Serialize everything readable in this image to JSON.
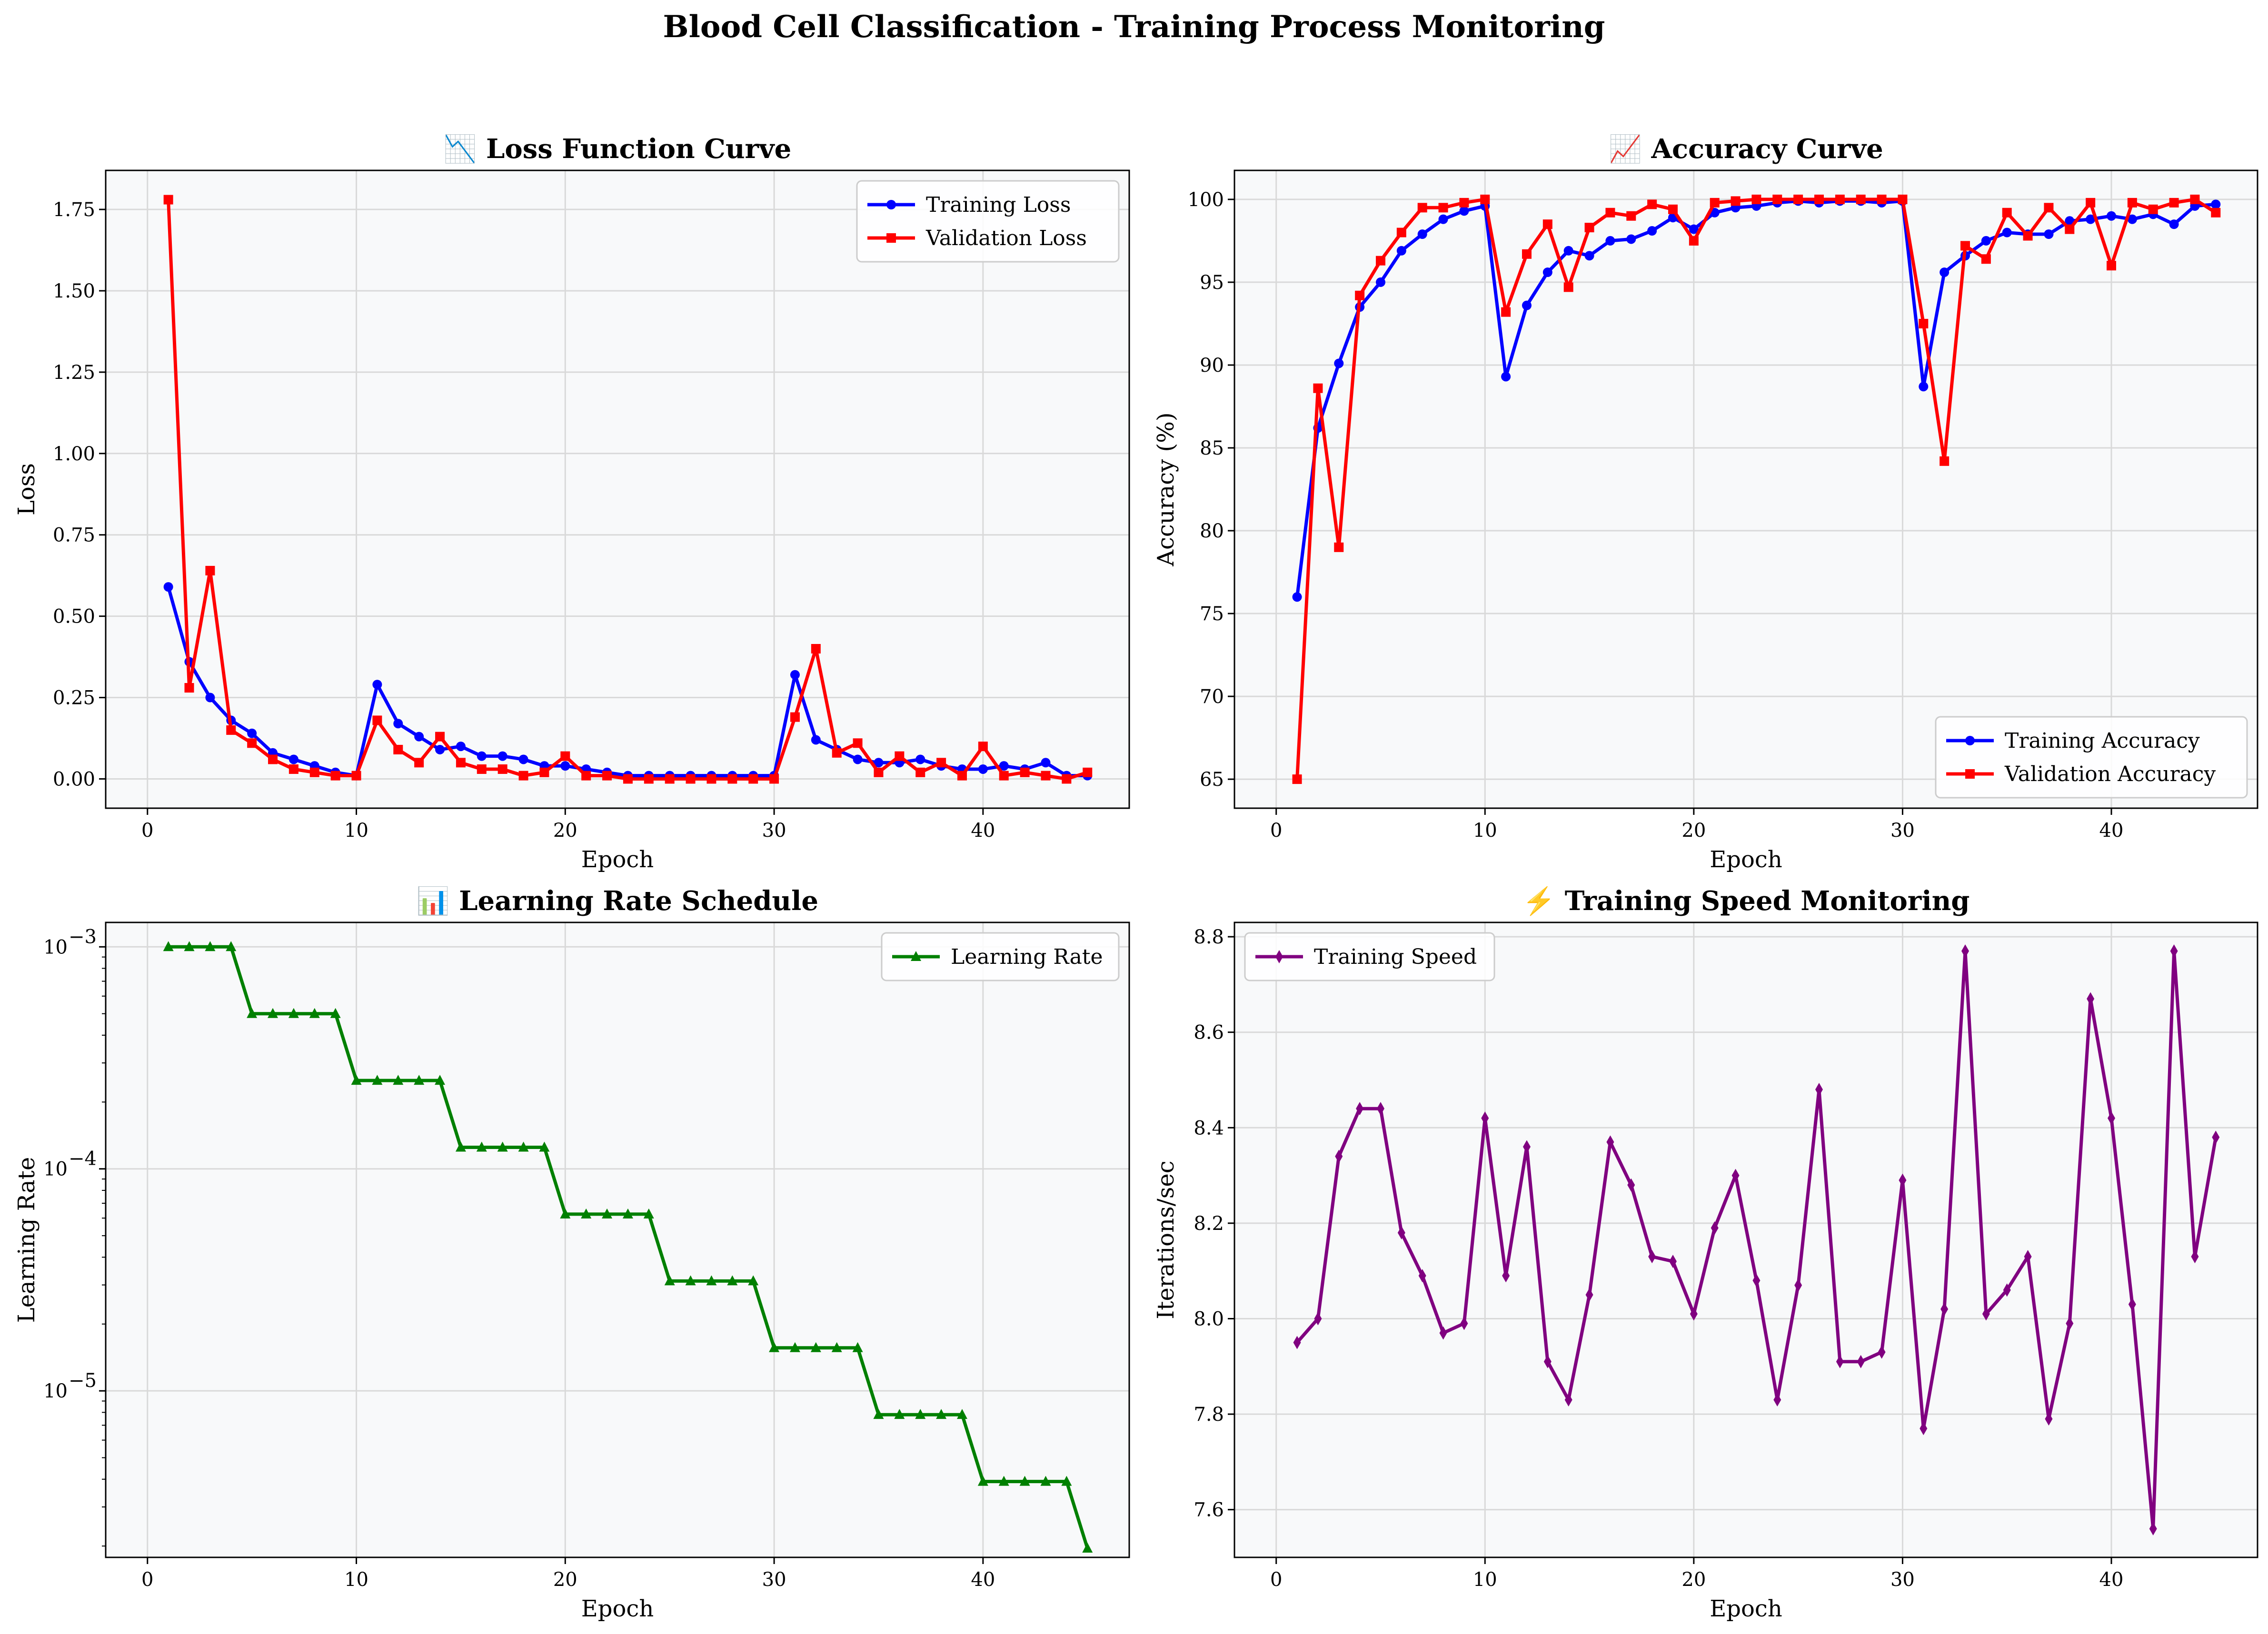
{
  "figure_title": "Blood Cell Classification - Training Process Monitoring",
  "chart_data": [
    {
      "type": "line",
      "title": "📉 Loss Function Curve",
      "xlabel": "Epoch",
      "ylabel": "Loss",
      "xlim": [
        -2,
        47
      ],
      "ylim": [
        -0.09,
        1.87
      ],
      "xticks": [
        0,
        10,
        20,
        30,
        40
      ],
      "yticks": [
        0.0,
        0.25,
        0.5,
        0.75,
        1.0,
        1.25,
        1.5,
        1.75
      ],
      "ytick_labels": [
        "0.00",
        "0.25",
        "0.50",
        "0.75",
        "1.00",
        "1.25",
        "1.50",
        "1.75"
      ],
      "yscale": "linear",
      "grid": true,
      "legend_position": "top-right",
      "x": [
        1,
        2,
        3,
        4,
        5,
        6,
        7,
        8,
        9,
        10,
        11,
        12,
        13,
        14,
        15,
        16,
        17,
        18,
        19,
        20,
        21,
        22,
        23,
        24,
        25,
        26,
        27,
        28,
        29,
        30,
        31,
        32,
        33,
        34,
        35,
        36,
        37,
        38,
        39,
        40,
        41,
        42,
        43,
        44,
        45
      ],
      "series": [
        {
          "name": "Training Loss",
          "color": "#0000ff",
          "marker": "circle",
          "values": [
            0.59,
            0.36,
            0.25,
            0.18,
            0.14,
            0.08,
            0.06,
            0.04,
            0.02,
            0.01,
            0.29,
            0.17,
            0.13,
            0.09,
            0.1,
            0.07,
            0.07,
            0.06,
            0.04,
            0.04,
            0.03,
            0.02,
            0.01,
            0.01,
            0.01,
            0.01,
            0.01,
            0.01,
            0.01,
            0.01,
            0.32,
            0.12,
            0.09,
            0.06,
            0.05,
            0.05,
            0.06,
            0.04,
            0.03,
            0.03,
            0.04,
            0.03,
            0.05,
            0.01,
            0.01
          ]
        },
        {
          "name": "Validation Loss",
          "color": "#ff0000",
          "marker": "square",
          "values": [
            1.78,
            0.28,
            0.64,
            0.15,
            0.11,
            0.06,
            0.03,
            0.02,
            0.01,
            0.01,
            0.18,
            0.09,
            0.05,
            0.13,
            0.05,
            0.03,
            0.03,
            0.01,
            0.02,
            0.07,
            0.01,
            0.01,
            0.0,
            0.0,
            0.0,
            0.0,
            0.0,
            0.0,
            0.0,
            0.0,
            0.19,
            0.4,
            0.08,
            0.11,
            0.02,
            0.07,
            0.02,
            0.05,
            0.01,
            0.1,
            0.01,
            0.02,
            0.01,
            0.0,
            0.02
          ]
        }
      ]
    },
    {
      "type": "line",
      "title": "📈 Accuracy Curve",
      "xlabel": "Epoch",
      "ylabel": "Accuracy (%)",
      "xlim": [
        -2,
        47
      ],
      "ylim": [
        63.25,
        101.75
      ],
      "xticks": [
        0,
        10,
        20,
        30,
        40
      ],
      "yticks": [
        65,
        70,
        75,
        80,
        85,
        90,
        95,
        100
      ],
      "ytick_labels": [
        "65",
        "70",
        "75",
        "80",
        "85",
        "90",
        "95",
        "100"
      ],
      "yscale": "linear",
      "grid": true,
      "legend_position": "bottom-right",
      "x": [
        1,
        2,
        3,
        4,
        5,
        6,
        7,
        8,
        9,
        10,
        11,
        12,
        13,
        14,
        15,
        16,
        17,
        18,
        19,
        20,
        21,
        22,
        23,
        24,
        25,
        26,
        27,
        28,
        29,
        30,
        31,
        32,
        33,
        34,
        35,
        36,
        37,
        38,
        39,
        40,
        41,
        42,
        43,
        44,
        45
      ],
      "series": [
        {
          "name": "Training Accuracy",
          "color": "#0000ff",
          "marker": "circle",
          "values": [
            76.0,
            86.2,
            90.1,
            93.5,
            95.0,
            96.9,
            97.9,
            98.8,
            99.3,
            99.6,
            89.3,
            93.6,
            95.6,
            96.9,
            96.6,
            97.5,
            97.6,
            98.1,
            98.9,
            98.2,
            99.2,
            99.5,
            99.6,
            99.8,
            99.9,
            99.8,
            99.9,
            99.9,
            99.8,
            99.9,
            88.7,
            95.6,
            96.6,
            97.5,
            98.0,
            97.9,
            97.9,
            98.7,
            98.8,
            99.0,
            98.8,
            99.1,
            98.5,
            99.6,
            99.7
          ]
        },
        {
          "name": "Validation Accuracy",
          "color": "#ff0000",
          "marker": "square",
          "values": [
            65.0,
            88.6,
            79.0,
            94.2,
            96.3,
            98.0,
            99.5,
            99.5,
            99.8,
            100.0,
            93.2,
            96.7,
            98.5,
            94.7,
            98.3,
            99.2,
            99.0,
            99.7,
            99.4,
            97.5,
            99.8,
            99.9,
            100.0,
            100.0,
            100.0,
            100.0,
            100.0,
            100.0,
            100.0,
            100.0,
            92.5,
            84.2,
            97.2,
            96.4,
            99.2,
            97.8,
            99.5,
            98.2,
            99.8,
            96.0,
            99.8,
            99.4,
            99.8,
            100.0,
            99.2
          ]
        }
      ]
    },
    {
      "type": "line",
      "title": "📊 Learning Rate Schedule",
      "xlabel": "Epoch",
      "ylabel": "Learning Rate",
      "xlim": [
        -2,
        47
      ],
      "ylim_log10": [
        -5.75,
        -2.89
      ],
      "xticks": [
        0,
        10,
        20,
        30,
        40
      ],
      "yticks": [
        1e-05,
        0.0001,
        0.001
      ],
      "ytick_labels": [
        "10",
        "10",
        "10"
      ],
      "ytick_exponents": [
        "−5",
        "−4",
        "−3"
      ],
      "yscale": "log",
      "grid": true,
      "legend_position": "top-right",
      "x": [
        1,
        2,
        3,
        4,
        5,
        6,
        7,
        8,
        9,
        10,
        11,
        12,
        13,
        14,
        15,
        16,
        17,
        18,
        19,
        20,
        21,
        22,
        23,
        24,
        25,
        26,
        27,
        28,
        29,
        30,
        31,
        32,
        33,
        34,
        35,
        36,
        37,
        38,
        39,
        40,
        41,
        42,
        43,
        44,
        45
      ],
      "series": [
        {
          "name": "Learning Rate",
          "color": "#008000",
          "marker": "triangle",
          "values": [
            0.001,
            0.001,
            0.001,
            0.001,
            0.0005,
            0.0005,
            0.0005,
            0.0005,
            0.0005,
            0.00025,
            0.00025,
            0.00025,
            0.00025,
            0.00025,
            0.000125,
            0.000125,
            0.000125,
            0.000125,
            0.000125,
            6.25e-05,
            6.25e-05,
            6.25e-05,
            6.25e-05,
            6.25e-05,
            3.125e-05,
            3.125e-05,
            3.125e-05,
            3.125e-05,
            3.125e-05,
            1.5625e-05,
            1.5625e-05,
            1.5625e-05,
            1.5625e-05,
            1.5625e-05,
            7.8125e-06,
            7.8125e-06,
            7.8125e-06,
            7.8125e-06,
            7.8125e-06,
            3.90625e-06,
            3.90625e-06,
            3.90625e-06,
            3.90625e-06,
            3.90625e-06,
            1.953125e-06
          ]
        }
      ]
    },
    {
      "type": "line",
      "title": "⚡ Training Speed Monitoring",
      "xlabel": "Epoch",
      "ylabel": "Iterations/sec",
      "xlim": [
        -2,
        47
      ],
      "ylim": [
        7.5,
        8.83
      ],
      "xticks": [
        0,
        10,
        20,
        30,
        40
      ],
      "yticks": [
        7.6,
        7.8,
        8.0,
        8.2,
        8.4,
        8.6,
        8.8
      ],
      "ytick_labels": [
        "7.6",
        "7.8",
        "8.0",
        "8.2",
        "8.4",
        "8.6",
        "8.8"
      ],
      "yscale": "linear",
      "grid": true,
      "legend_position": "top-left",
      "x": [
        1,
        2,
        3,
        4,
        5,
        6,
        7,
        8,
        9,
        10,
        11,
        12,
        13,
        14,
        15,
        16,
        17,
        18,
        19,
        20,
        21,
        22,
        23,
        24,
        25,
        26,
        27,
        28,
        29,
        30,
        31,
        32,
        33,
        34,
        35,
        36,
        37,
        38,
        39,
        40,
        41,
        42,
        43,
        44,
        45
      ],
      "series": [
        {
          "name": "Training Speed",
          "color": "#800080",
          "marker": "diamond",
          "values": [
            7.95,
            8.0,
            8.34,
            8.44,
            8.44,
            8.18,
            8.09,
            7.97,
            7.99,
            8.42,
            8.09,
            8.36,
            7.91,
            7.83,
            8.05,
            8.37,
            8.28,
            8.13,
            8.12,
            8.01,
            8.19,
            8.3,
            8.08,
            7.83,
            8.07,
            8.48,
            7.91,
            7.91,
            7.93,
            8.29,
            7.77,
            8.02,
            8.77,
            8.01,
            8.06,
            8.13,
            7.79,
            7.99,
            8.67,
            8.42,
            8.03,
            7.56,
            8.77,
            8.13,
            8.38
          ]
        }
      ]
    }
  ]
}
